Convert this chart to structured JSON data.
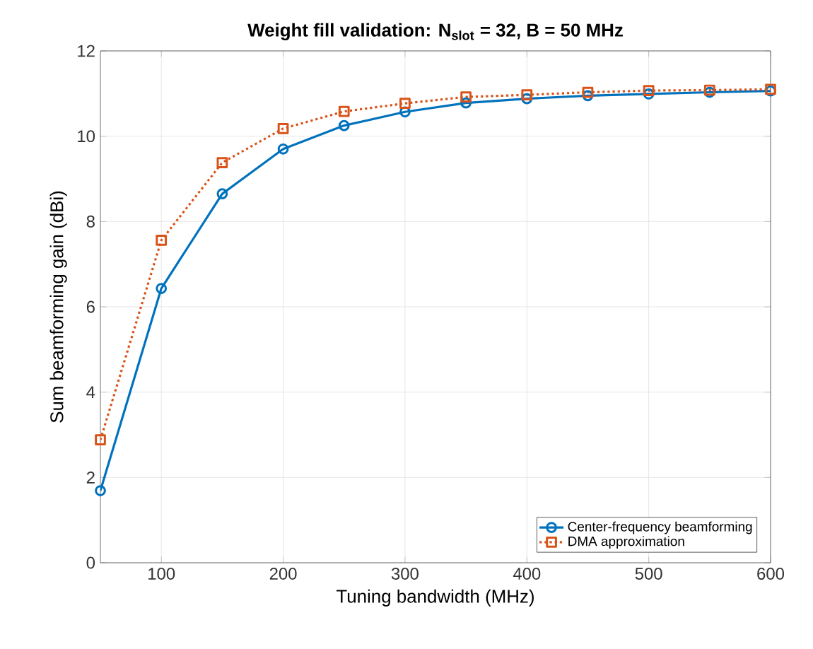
{
  "chart_data": {
    "type": "line",
    "title": "Weight fill validation: N$_{slot}$ = 32, B = 50 MHz",
    "xlabel": "Tuning bandwidth (MHz)",
    "ylabel": "Sum beamforming gain (dBi)",
    "x": [
      50,
      100,
      150,
      200,
      250,
      300,
      350,
      400,
      450,
      500,
      550,
      600
    ],
    "series": [
      {
        "name": "Center-frequency beamforming",
        "color": "#0072bd",
        "marker": "circle",
        "line_style": "solid",
        "values": [
          1.69,
          6.43,
          8.65,
          9.7,
          10.25,
          10.57,
          10.78,
          10.88,
          10.95,
          10.99,
          11.03,
          11.06
        ]
      },
      {
        "name": "DMA approximation",
        "color": "#d95319",
        "marker": "square",
        "line_style": "dotted",
        "values": [
          2.88,
          7.56,
          9.38,
          10.18,
          10.58,
          10.77,
          10.92,
          10.97,
          11.03,
          11.07,
          11.08,
          11.1
        ]
      }
    ],
    "xlim": [
      50,
      600
    ],
    "ylim": [
      0,
      12
    ],
    "xticks": [
      100,
      200,
      300,
      400,
      500,
      600
    ],
    "yticks": [
      0,
      2,
      4,
      6,
      8,
      10,
      12
    ],
    "grid": true,
    "legend": "bottom right"
  }
}
